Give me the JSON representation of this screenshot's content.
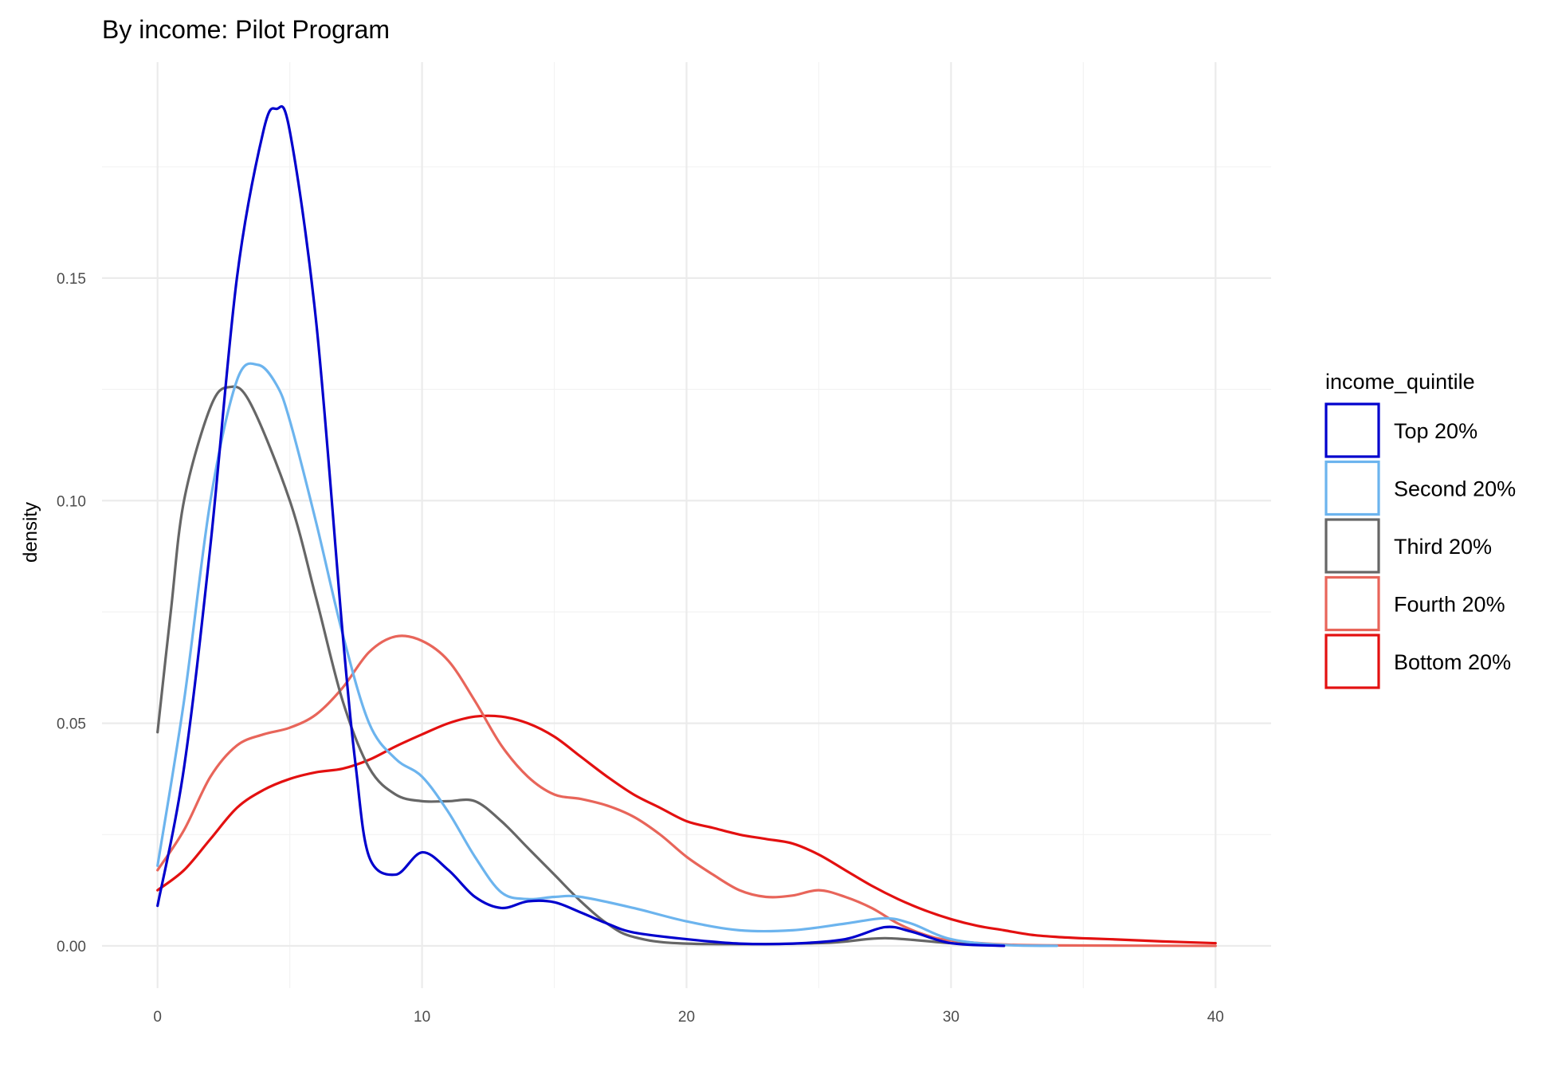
{
  "chart_data": {
    "type": "line",
    "title": "By income: Pilot Program",
    "xlabel": "",
    "ylabel": "density",
    "xlim": [
      -2.1,
      42.1
    ],
    "ylim": [
      -0.0095,
      0.1985
    ],
    "x_major_ticks": [
      0,
      10,
      20,
      30,
      40
    ],
    "x_tick_labels": [
      "0",
      "10",
      "20",
      "30",
      "40"
    ],
    "y_major_ticks": [
      0.0,
      0.05,
      0.1,
      0.15
    ],
    "y_tick_labels": [
      "0.00",
      "0.05",
      "0.10",
      "0.15"
    ],
    "x_minor_ticks": [
      5,
      15,
      25,
      35
    ],
    "y_minor_ticks": [
      0.025,
      0.075,
      0.125,
      0.175
    ],
    "grid": true,
    "legend": {
      "title": "income_quintile",
      "position": "right"
    },
    "series": [
      {
        "name": "Top 20%",
        "color": "#0000CD",
        "points": [
          [
            0,
            0.009
          ],
          [
            1,
            0.04
          ],
          [
            2,
            0.09
          ],
          [
            3,
            0.15
          ],
          [
            4,
            0.183
          ],
          [
            4.5,
            0.188
          ],
          [
            5,
            0.183
          ],
          [
            6,
            0.14
          ],
          [
            7,
            0.07
          ],
          [
            7.5,
            0.04
          ],
          [
            8,
            0.02
          ],
          [
            9,
            0.016
          ],
          [
            10,
            0.021
          ],
          [
            11,
            0.017
          ],
          [
            12,
            0.011
          ],
          [
            13,
            0.0085
          ],
          [
            14,
            0.01
          ],
          [
            15,
            0.0098
          ],
          [
            16,
            0.0075
          ],
          [
            17,
            0.005
          ],
          [
            18,
            0.003
          ],
          [
            20,
            0.0015
          ],
          [
            22,
            0.0005
          ],
          [
            24,
            0.0005
          ],
          [
            26,
            0.0015
          ],
          [
            27.5,
            0.0042
          ],
          [
            28.5,
            0.0032
          ],
          [
            30,
            0.0006
          ],
          [
            32,
            0.0
          ]
        ]
      },
      {
        "name": "Second 20%",
        "color": "#6CB4EE",
        "points": [
          [
            0,
            0.018
          ],
          [
            1,
            0.055
          ],
          [
            2,
            0.1
          ],
          [
            3,
            0.127
          ],
          [
            3.8,
            0.1305
          ],
          [
            4.5,
            0.126
          ],
          [
            5,
            0.118
          ],
          [
            6,
            0.095
          ],
          [
            7,
            0.07
          ],
          [
            8,
            0.05
          ],
          [
            9,
            0.042
          ],
          [
            10,
            0.038
          ],
          [
            11,
            0.03
          ],
          [
            12,
            0.02
          ],
          [
            13,
            0.012
          ],
          [
            14,
            0.0105
          ],
          [
            15,
            0.011
          ],
          [
            16,
            0.011
          ],
          [
            18,
            0.0085
          ],
          [
            20,
            0.0055
          ],
          [
            22,
            0.0035
          ],
          [
            24,
            0.0035
          ],
          [
            26,
            0.005
          ],
          [
            27.5,
            0.0062
          ],
          [
            28.5,
            0.005
          ],
          [
            30,
            0.0015
          ],
          [
            32,
            0.0002
          ],
          [
            34,
            0.0
          ]
        ]
      },
      {
        "name": "Third 20%",
        "color": "#666666",
        "points": [
          [
            0,
            0.048
          ],
          [
            0.5,
            0.075
          ],
          [
            1,
            0.1
          ],
          [
            2,
            0.121
          ],
          [
            2.7,
            0.1255
          ],
          [
            3.5,
            0.122
          ],
          [
            5,
            0.1
          ],
          [
            6,
            0.078
          ],
          [
            7,
            0.055
          ],
          [
            8,
            0.04
          ],
          [
            9,
            0.034
          ],
          [
            10,
            0.0325
          ],
          [
            11,
            0.0325
          ],
          [
            12,
            0.0325
          ],
          [
            13,
            0.028
          ],
          [
            14,
            0.022
          ],
          [
            15,
            0.016
          ],
          [
            16,
            0.01
          ],
          [
            17,
            0.005
          ],
          [
            18,
            0.002
          ],
          [
            20,
            0.0005
          ],
          [
            25,
            0.0006
          ],
          [
            27,
            0.0016
          ],
          [
            28,
            0.0016
          ],
          [
            30,
            0.0006
          ],
          [
            32,
            0.0
          ]
        ]
      },
      {
        "name": "Fourth 20%",
        "color": "#E8655A",
        "points": [
          [
            0,
            0.017
          ],
          [
            1,
            0.026
          ],
          [
            2,
            0.038
          ],
          [
            3,
            0.045
          ],
          [
            4,
            0.0475
          ],
          [
            5,
            0.049
          ],
          [
            6,
            0.052
          ],
          [
            7,
            0.058
          ],
          [
            8,
            0.066
          ],
          [
            9,
            0.0695
          ],
          [
            10,
            0.0685
          ],
          [
            11,
            0.064
          ],
          [
            12,
            0.055
          ],
          [
            13,
            0.045
          ],
          [
            14,
            0.038
          ],
          [
            15,
            0.034
          ],
          [
            16,
            0.033
          ],
          [
            17,
            0.0315
          ],
          [
            18,
            0.029
          ],
          [
            19,
            0.025
          ],
          [
            20,
            0.02
          ],
          [
            21,
            0.016
          ],
          [
            22,
            0.0125
          ],
          [
            23,
            0.011
          ],
          [
            24,
            0.0113
          ],
          [
            25,
            0.0125
          ],
          [
            26,
            0.011
          ],
          [
            27,
            0.0085
          ],
          [
            28,
            0.005
          ],
          [
            29,
            0.0025
          ],
          [
            30,
            0.0012
          ],
          [
            32,
            0.0003
          ],
          [
            34,
            0.0001
          ],
          [
            40,
            0.0
          ]
        ]
      },
      {
        "name": "Bottom 20%",
        "color": "#E31010",
        "points": [
          [
            0,
            0.0125
          ],
          [
            1,
            0.017
          ],
          [
            2,
            0.024
          ],
          [
            3,
            0.031
          ],
          [
            4,
            0.035
          ],
          [
            5,
            0.0375
          ],
          [
            6,
            0.039
          ],
          [
            7,
            0.0398
          ],
          [
            8,
            0.0418
          ],
          [
            9,
            0.0448
          ],
          [
            10,
            0.0475
          ],
          [
            11,
            0.05
          ],
          [
            12,
            0.0515
          ],
          [
            13,
            0.0515
          ],
          [
            14,
            0.05
          ],
          [
            15,
            0.047
          ],
          [
            16,
            0.0425
          ],
          [
            17,
            0.038
          ],
          [
            18,
            0.034
          ],
          [
            19,
            0.031
          ],
          [
            20,
            0.028
          ],
          [
            21,
            0.0265
          ],
          [
            22,
            0.025
          ],
          [
            23,
            0.024
          ],
          [
            24,
            0.023
          ],
          [
            25,
            0.0205
          ],
          [
            26,
            0.017
          ],
          [
            27,
            0.0135
          ],
          [
            28,
            0.0105
          ],
          [
            29,
            0.008
          ],
          [
            30,
            0.006
          ],
          [
            31,
            0.0045
          ],
          [
            32,
            0.0035
          ],
          [
            33,
            0.0025
          ],
          [
            34,
            0.002
          ],
          [
            35,
            0.0017
          ],
          [
            36,
            0.0015
          ],
          [
            38,
            0.001
          ],
          [
            40,
            0.0006
          ]
        ]
      }
    ]
  }
}
